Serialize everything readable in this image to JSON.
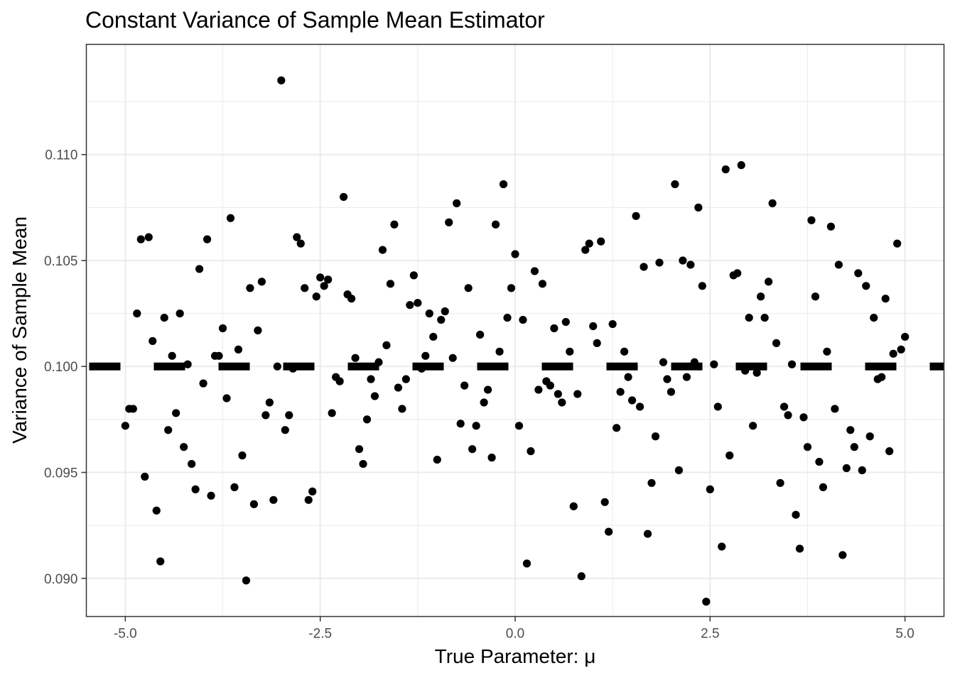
{
  "chart_data": {
    "type": "scatter",
    "title": "Constant Variance of Sample Mean Estimator",
    "xlabel": "True Parameter: μ",
    "ylabel": "Variance of Sample Mean",
    "xlim": [
      -5.5,
      5.5
    ],
    "ylim": [
      0.0882,
      0.1152
    ],
    "x_ticks": [
      -5.0,
      -2.5,
      0.0,
      2.5,
      5.0
    ],
    "x_tick_labels": [
      "-5.0",
      "-2.5",
      "0.0",
      "2.5",
      "5.0"
    ],
    "y_ticks": [
      0.09,
      0.095,
      0.1,
      0.105,
      0.11
    ],
    "y_tick_labels": [
      "0.090",
      "0.095",
      "0.100",
      "0.105",
      "0.110"
    ],
    "grid": true,
    "reference_line": {
      "y": 0.1,
      "style": "dashed",
      "color": "#000000"
    },
    "point_color": "#000000",
    "points": [
      [
        -5.0,
        0.0972
      ],
      [
        -4.95,
        0.098
      ],
      [
        -4.9,
        0.098
      ],
      [
        -4.85,
        0.1025
      ],
      [
        -4.8,
        0.106
      ],
      [
        -4.75,
        0.0948
      ],
      [
        -4.7,
        0.1061
      ],
      [
        -4.65,
        0.1012
      ],
      [
        -4.6,
        0.0932
      ],
      [
        -4.55,
        0.0908
      ],
      [
        -4.5,
        0.1023
      ],
      [
        -4.45,
        0.097
      ],
      [
        -4.4,
        0.1005
      ],
      [
        -4.35,
        0.0978
      ],
      [
        -4.3,
        0.1025
      ],
      [
        -4.25,
        0.0962
      ],
      [
        -4.2,
        0.1001
      ],
      [
        -4.15,
        0.0954
      ],
      [
        -4.1,
        0.0942
      ],
      [
        -4.05,
        0.1046
      ],
      [
        -4.0,
        0.0992
      ],
      [
        -3.95,
        0.106
      ],
      [
        -3.9,
        0.0939
      ],
      [
        -3.85,
        0.1005
      ],
      [
        -3.8,
        0.1005
      ],
      [
        -3.75,
        0.1018
      ],
      [
        -3.7,
        0.0985
      ],
      [
        -3.65,
        0.107
      ],
      [
        -3.6,
        0.0943
      ],
      [
        -3.55,
        0.1008
      ],
      [
        -3.5,
        0.0958
      ],
      [
        -3.45,
        0.0899
      ],
      [
        -3.4,
        0.1037
      ],
      [
        -3.35,
        0.0935
      ],
      [
        -3.3,
        0.1017
      ],
      [
        -3.25,
        0.104
      ],
      [
        -3.2,
        0.0977
      ],
      [
        -3.15,
        0.0983
      ],
      [
        -3.1,
        0.0937
      ],
      [
        -3.05,
        0.1
      ],
      [
        -3.0,
        0.1135
      ],
      [
        -2.95,
        0.097
      ],
      [
        -2.9,
        0.0977
      ],
      [
        -2.85,
        0.0999
      ],
      [
        -2.8,
        0.1061
      ],
      [
        -2.75,
        0.1058
      ],
      [
        -2.7,
        0.1037
      ],
      [
        -2.65,
        0.0937
      ],
      [
        -2.6,
        0.0941
      ],
      [
        -2.55,
        0.1033
      ],
      [
        -2.5,
        0.1042
      ],
      [
        -2.45,
        0.1038
      ],
      [
        -2.4,
        0.1041
      ],
      [
        -2.35,
        0.0978
      ],
      [
        -2.3,
        0.0995
      ],
      [
        -2.25,
        0.0993
      ],
      [
        -2.2,
        0.108
      ],
      [
        -2.15,
        0.1034
      ],
      [
        -2.1,
        0.1032
      ],
      [
        -2.05,
        0.1004
      ],
      [
        -2.0,
        0.0961
      ],
      [
        -1.95,
        0.0954
      ],
      [
        -1.9,
        0.0975
      ],
      [
        -1.85,
        0.0994
      ],
      [
        -1.8,
        0.0986
      ],
      [
        -1.75,
        0.1002
      ],
      [
        -1.7,
        0.1055
      ],
      [
        -1.65,
        0.101
      ],
      [
        -1.6,
        0.1039
      ],
      [
        -1.55,
        0.1067
      ],
      [
        -1.5,
        0.099
      ],
      [
        -1.45,
        0.098
      ],
      [
        -1.4,
        0.0994
      ],
      [
        -1.35,
        0.1029
      ],
      [
        -1.3,
        0.1043
      ],
      [
        -1.25,
        0.103
      ],
      [
        -1.2,
        0.0999
      ],
      [
        -1.15,
        0.1005
      ],
      [
        -1.1,
        0.1025
      ],
      [
        -1.05,
        0.1014
      ],
      [
        -1.0,
        0.0956
      ],
      [
        -0.95,
        0.1022
      ],
      [
        -0.9,
        0.1026
      ],
      [
        -0.85,
        0.1068
      ],
      [
        -0.8,
        0.1004
      ],
      [
        -0.75,
        0.1077
      ],
      [
        -0.7,
        0.0973
      ],
      [
        -0.65,
        0.0991
      ],
      [
        -0.6,
        0.1037
      ],
      [
        -0.55,
        0.0961
      ],
      [
        -0.5,
        0.0972
      ],
      [
        -0.45,
        0.1015
      ],
      [
        -0.4,
        0.0983
      ],
      [
        -0.35,
        0.0989
      ],
      [
        -0.3,
        0.0957
      ],
      [
        -0.25,
        0.1067
      ],
      [
        -0.2,
        0.1007
      ],
      [
        -0.15,
        0.1086
      ],
      [
        -0.1,
        0.1023
      ],
      [
        -0.05,
        0.1037
      ],
      [
        0.0,
        0.1053
      ],
      [
        0.05,
        0.0972
      ],
      [
        0.1,
        0.1022
      ],
      [
        0.15,
        0.0907
      ],
      [
        0.2,
        0.096
      ],
      [
        0.25,
        0.1045
      ],
      [
        0.3,
        0.0989
      ],
      [
        0.35,
        0.1039
      ],
      [
        0.4,
        0.0993
      ],
      [
        0.45,
        0.0991
      ],
      [
        0.5,
        0.1018
      ],
      [
        0.55,
        0.0987
      ],
      [
        0.6,
        0.0983
      ],
      [
        0.65,
        0.1021
      ],
      [
        0.7,
        0.1007
      ],
      [
        0.75,
        0.0934
      ],
      [
        0.8,
        0.0987
      ],
      [
        0.85,
        0.0901
      ],
      [
        0.9,
        0.1055
      ],
      [
        0.95,
        0.1058
      ],
      [
        1.0,
        0.1019
      ],
      [
        1.05,
        0.1011
      ],
      [
        1.1,
        0.1059
      ],
      [
        1.15,
        0.0936
      ],
      [
        1.2,
        0.0922
      ],
      [
        1.25,
        0.102
      ],
      [
        1.3,
        0.0971
      ],
      [
        1.35,
        0.0988
      ],
      [
        1.4,
        0.1007
      ],
      [
        1.45,
        0.0995
      ],
      [
        1.5,
        0.0984
      ],
      [
        1.55,
        0.1071
      ],
      [
        1.6,
        0.0981
      ],
      [
        1.65,
        0.1047
      ],
      [
        1.7,
        0.0921
      ],
      [
        1.75,
        0.0945
      ],
      [
        1.8,
        0.0967
      ],
      [
        1.85,
        0.1049
      ],
      [
        1.9,
        0.1002
      ],
      [
        1.95,
        0.0994
      ],
      [
        2.0,
        0.0988
      ],
      [
        2.05,
        0.1086
      ],
      [
        2.1,
        0.0951
      ],
      [
        2.15,
        0.105
      ],
      [
        2.2,
        0.0995
      ],
      [
        2.25,
        0.1048
      ],
      [
        2.3,
        0.1002
      ],
      [
        2.35,
        0.1075
      ],
      [
        2.4,
        0.1038
      ],
      [
        2.45,
        0.0889
      ],
      [
        2.5,
        0.0942
      ],
      [
        2.55,
        0.1001
      ],
      [
        2.6,
        0.0981
      ],
      [
        2.65,
        0.0915
      ],
      [
        2.7,
        0.1093
      ],
      [
        2.75,
        0.0958
      ],
      [
        2.8,
        0.1043
      ],
      [
        2.85,
        0.1044
      ],
      [
        2.9,
        0.1095
      ],
      [
        2.95,
        0.0998
      ],
      [
        3.0,
        0.1023
      ],
      [
        3.05,
        0.0972
      ],
      [
        3.1,
        0.0997
      ],
      [
        3.15,
        0.1033
      ],
      [
        3.2,
        0.1023
      ],
      [
        3.25,
        0.104
      ],
      [
        3.3,
        0.1077
      ],
      [
        3.35,
        0.1011
      ],
      [
        3.4,
        0.0945
      ],
      [
        3.45,
        0.0981
      ],
      [
        3.5,
        0.0977
      ],
      [
        3.55,
        0.1001
      ],
      [
        3.6,
        0.093
      ],
      [
        3.65,
        0.0914
      ],
      [
        3.7,
        0.0976
      ],
      [
        3.75,
        0.0962
      ],
      [
        3.8,
        0.1069
      ],
      [
        3.85,
        0.1033
      ],
      [
        3.9,
        0.0955
      ],
      [
        3.95,
        0.0943
      ],
      [
        4.0,
        0.1007
      ],
      [
        4.05,
        0.1066
      ],
      [
        4.1,
        0.098
      ],
      [
        4.15,
        0.1048
      ],
      [
        4.2,
        0.0911
      ],
      [
        4.25,
        0.0952
      ],
      [
        4.3,
        0.097
      ],
      [
        4.35,
        0.0962
      ],
      [
        4.4,
        0.1044
      ],
      [
        4.45,
        0.0951
      ],
      [
        4.5,
        0.1038
      ],
      [
        4.55,
        0.0967
      ],
      [
        4.6,
        0.1023
      ],
      [
        4.65,
        0.0994
      ],
      [
        4.7,
        0.0995
      ],
      [
        4.75,
        0.1032
      ],
      [
        4.8,
        0.096
      ],
      [
        4.85,
        0.1006
      ],
      [
        4.9,
        0.1058
      ],
      [
        4.95,
        0.1008
      ],
      [
        5.0,
        0.1014
      ]
    ]
  }
}
